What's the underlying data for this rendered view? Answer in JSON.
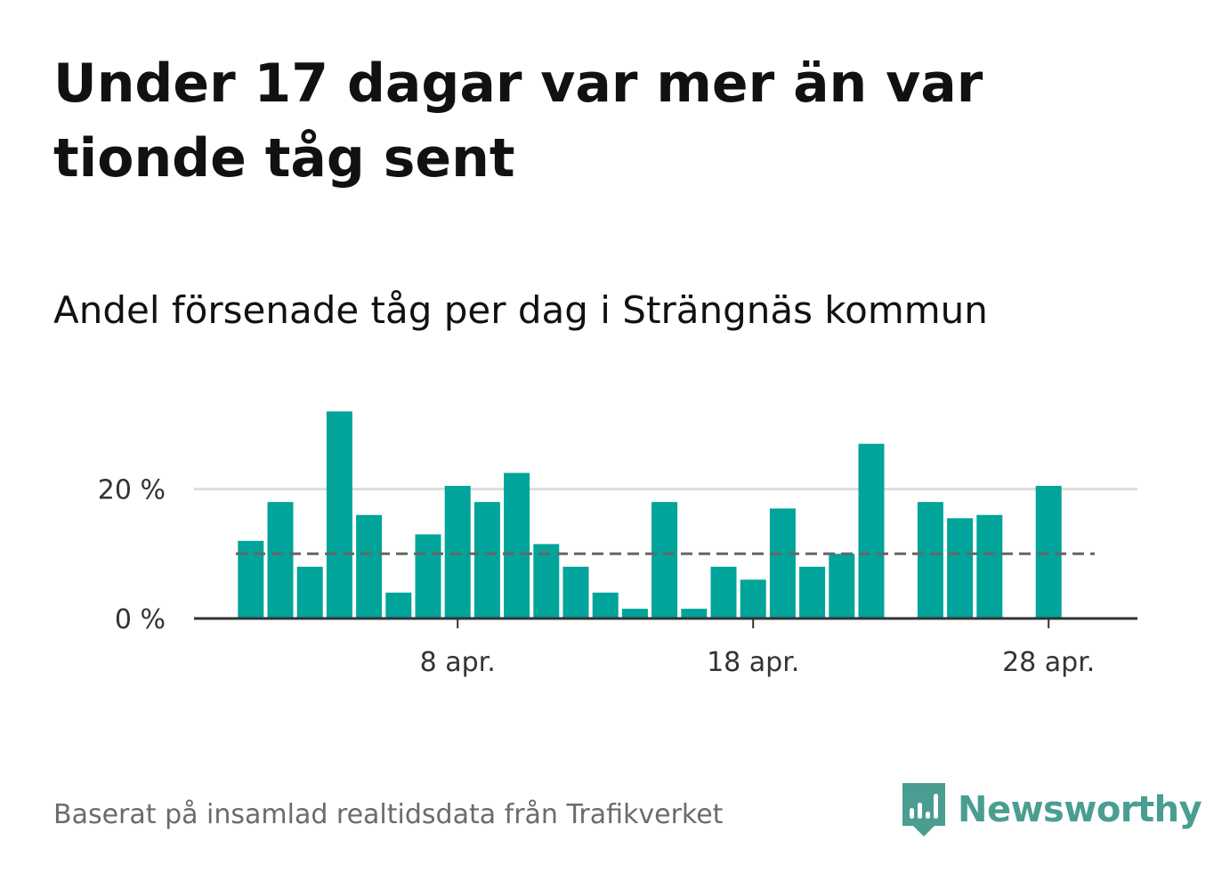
{
  "title": "Under 17 dagar var mer än var tionde tåg sent",
  "subtitle": "Andel försenade tåg per dag i Strängnäs kommun",
  "source": "Baserat på insamlad realtidsdata från Trafikverket",
  "brand": {
    "name": "Newsworthy",
    "color": "#4a9e91"
  },
  "colors": {
    "bar": "#00a49a",
    "grid": "#dddddd",
    "axis": "#333333",
    "reference": "#666666",
    "tick_text": "#333333"
  },
  "chart_data": {
    "type": "bar",
    "title": "Andel försenade tåg per dag i Strängnäs kommun",
    "xlabel": "",
    "ylabel": "",
    "unit": "%",
    "ylim": [
      0,
      33
    ],
    "y_ticks": [
      {
        "value": 0,
        "label": "0 %"
      },
      {
        "value": 20,
        "label": "20 %"
      }
    ],
    "x_ticks": [
      {
        "day": 8,
        "label": "8 apr."
      },
      {
        "day": 18,
        "label": "18 apr."
      },
      {
        "day": 28,
        "label": "28 apr."
      }
    ],
    "x_range": [
      -0.5,
      31.5
    ],
    "reference_line": {
      "value": 10,
      "style": "dashed"
    },
    "days": [
      1,
      2,
      3,
      4,
      5,
      6,
      7,
      8,
      9,
      10,
      11,
      12,
      13,
      14,
      15,
      16,
      17,
      18,
      19,
      20,
      21,
      22,
      23,
      24,
      25,
      26,
      27,
      28,
      29,
      30
    ],
    "values": [
      12,
      18,
      8,
      32,
      16,
      4,
      13,
      20.5,
      18,
      22.5,
      11.5,
      8,
      4,
      1.5,
      18,
      1.5,
      8,
      6,
      17,
      8,
      10,
      27,
      0,
      18,
      15.5,
      16,
      0,
      20.5,
      null,
      null
    ]
  }
}
